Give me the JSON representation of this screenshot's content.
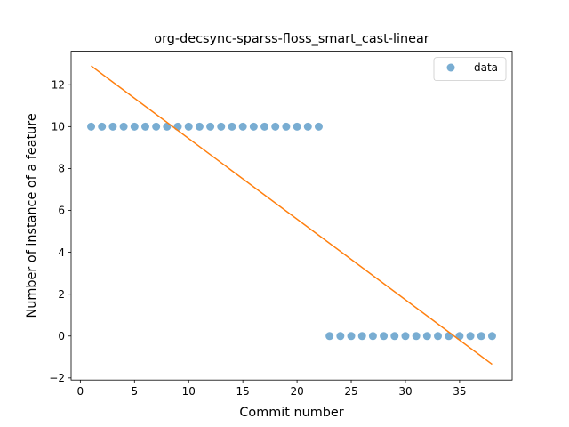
{
  "chart_data": {
    "type": "scatter",
    "title": "org-decsync-sparss-floss_smart_cast-linear",
    "xlabel": "Commit number",
    "ylabel": "Number of instance of a feature",
    "xlim": [
      -0.85,
      39.85
    ],
    "ylim": [
      -2.1,
      13.6
    ],
    "x_ticks": [
      0,
      5,
      10,
      15,
      20,
      25,
      30,
      35
    ],
    "y_ticks": [
      -2,
      0,
      2,
      4,
      6,
      8,
      10,
      12
    ],
    "grid": false,
    "legend_position": "top-right",
    "series": [
      {
        "name": "data",
        "kind": "scatter",
        "color": "#1f77b4",
        "x": [
          1,
          2,
          3,
          4,
          5,
          6,
          7,
          8,
          9,
          10,
          11,
          12,
          13,
          14,
          15,
          16,
          17,
          18,
          19,
          20,
          21,
          22,
          23,
          24,
          25,
          26,
          27,
          28,
          29,
          30,
          31,
          32,
          33,
          34,
          35,
          36,
          37,
          38
        ],
        "y": [
          10,
          10,
          10,
          10,
          10,
          10,
          10,
          10,
          10,
          10,
          10,
          10,
          10,
          10,
          10,
          10,
          10,
          10,
          10,
          10,
          10,
          10,
          0,
          0,
          0,
          0,
          0,
          0,
          0,
          0,
          0,
          0,
          0,
          0,
          0,
          0,
          0,
          0
        ]
      },
      {
        "kind": "line",
        "color": "#ff7f0e",
        "x": [
          1,
          38
        ],
        "y": [
          12.9,
          -1.35
        ]
      }
    ]
  }
}
